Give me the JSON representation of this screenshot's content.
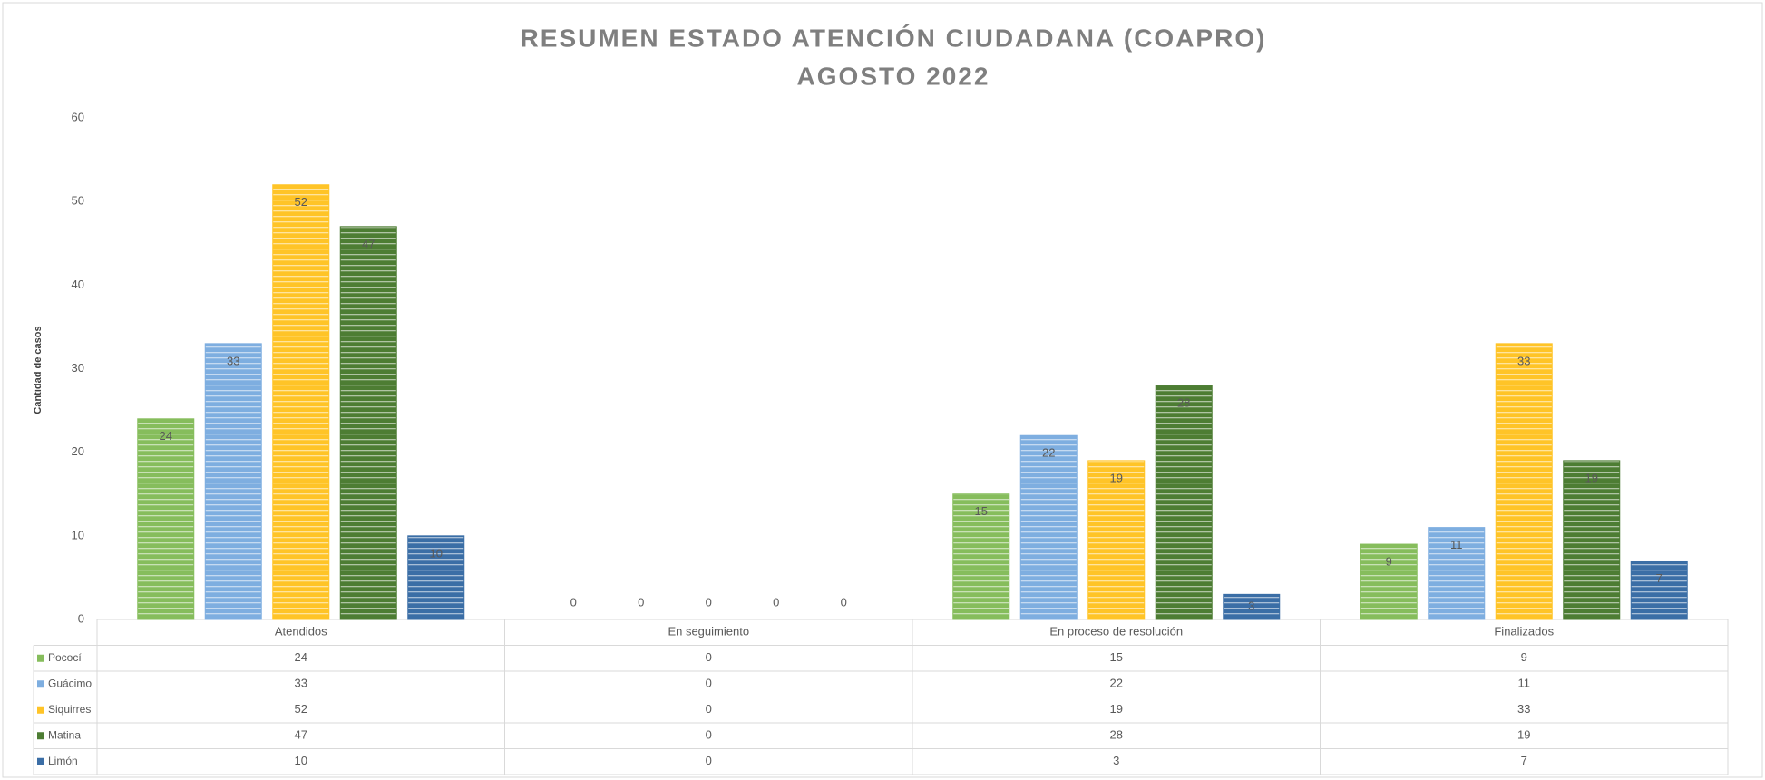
{
  "chart_data": {
    "type": "bar",
    "title": "RESUMEN ESTADO ATENCIÓN CIUDADANA (COAPRO)",
    "subtitle": "AGOSTO 2022",
    "y_label": "Cantidad de casos",
    "categories": [
      "Atendidos",
      "En seguimiento",
      "En proceso de resolución",
      "Finalizados"
    ],
    "series": [
      {
        "name": "Pococí",
        "color": "#86bd5c",
        "values": [
          24,
          0,
          15,
          9
        ]
      },
      {
        "name": "Guácimo",
        "color": "#7eaee0",
        "values": [
          33,
          0,
          22,
          11
        ]
      },
      {
        "name": "Siquirres",
        "color": "#ffc427",
        "values": [
          52,
          0,
          19,
          33
        ]
      },
      {
        "name": "Matina",
        "color": "#4d7d33",
        "values": [
          47,
          0,
          28,
          19
        ]
      },
      {
        "name": "Limón",
        "color": "#3b6ea6",
        "values": [
          10,
          0,
          3,
          7
        ]
      }
    ],
    "ylim": [
      0,
      60
    ],
    "yticks": [
      0,
      10,
      20,
      30,
      40,
      50,
      60
    ],
    "data_table": true
  }
}
